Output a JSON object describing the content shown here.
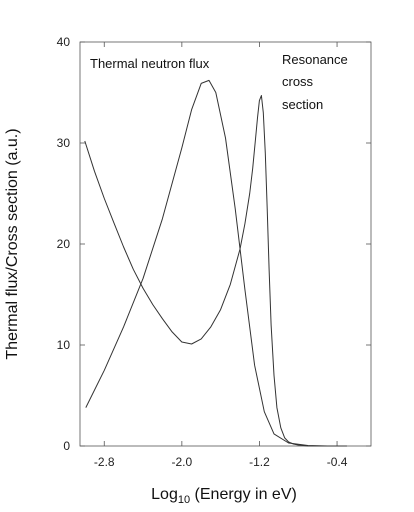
{
  "chart_data": {
    "type": "line",
    "xlabel": "Log10 (Energy in eV)",
    "xlabel_main": "Log",
    "xlabel_sub": "10",
    "xlabel_tail": " (Energy in eV)",
    "ylabel": "Thermal flux/Cross section (a.u.)",
    "xlim": [
      -3.05,
      -0.05
    ],
    "ylim": [
      0,
      40
    ],
    "x_ticks": [
      -2.8,
      -2.0,
      -1.2,
      -0.4
    ],
    "x_tick_labels": [
      "-2.8",
      "-2.0",
      "-1.2",
      "-0.4"
    ],
    "y_ticks": [
      0,
      10,
      20,
      30,
      40
    ],
    "y_tick_labels": [
      "0",
      "10",
      "20",
      "30",
      "40"
    ],
    "annotations": [
      {
        "text": "Thermal neutron flux"
      },
      {
        "text": "Resonance"
      },
      {
        "text": "cross"
      },
      {
        "text": "section"
      }
    ],
    "series": [
      {
        "color": "#333333",
        "x": [
          -2.99,
          -2.8,
          -2.6,
          -2.4,
          -2.2,
          -2.0,
          -1.9,
          -1.8,
          -1.72,
          -1.65,
          -1.55,
          -1.45,
          -1.35,
          -1.25,
          -1.15,
          -1.05,
          -0.9,
          -0.7,
          -0.5,
          -0.3
        ],
        "y": [
          3.8,
          7.5,
          11.8,
          16.6,
          22.5,
          29.5,
          33.3,
          35.9,
          36.2,
          35.0,
          30.5,
          23.5,
          15.5,
          8.0,
          3.4,
          1.2,
          0.3,
          0.05,
          0.0,
          0.0
        ]
      },
      {
        "color": "#333333",
        "x": [
          -3.0,
          -2.9,
          -2.8,
          -2.7,
          -2.6,
          -2.5,
          -2.4,
          -2.3,
          -2.2,
          -2.1,
          -2.0,
          -1.9,
          -1.8,
          -1.7,
          -1.6,
          -1.5,
          -1.4,
          -1.35,
          -1.3,
          -1.27,
          -1.24,
          -1.22,
          -1.2,
          -1.18,
          -1.16,
          -1.14,
          -1.12,
          -1.1,
          -1.08,
          -1.05,
          -1.02,
          -0.98,
          -0.94,
          -0.9,
          -0.85,
          -0.8,
          -0.75,
          -0.7,
          -0.6,
          -0.5,
          -0.4,
          -0.3
        ],
        "y": [
          30.2,
          27.2,
          24.5,
          22.1,
          19.7,
          17.5,
          15.6,
          14.0,
          12.6,
          11.3,
          10.3,
          10.1,
          10.6,
          11.8,
          13.5,
          16.0,
          19.5,
          22.0,
          25.0,
          27.5,
          30.5,
          32.5,
          34.2,
          34.7,
          33.0,
          29.0,
          23.5,
          17.5,
          12.0,
          7.0,
          3.8,
          1.8,
          0.8,
          0.4,
          0.2,
          0.1,
          0.05,
          0.0,
          0.0,
          0.0,
          0.0,
          0.0
        ]
      }
    ]
  }
}
